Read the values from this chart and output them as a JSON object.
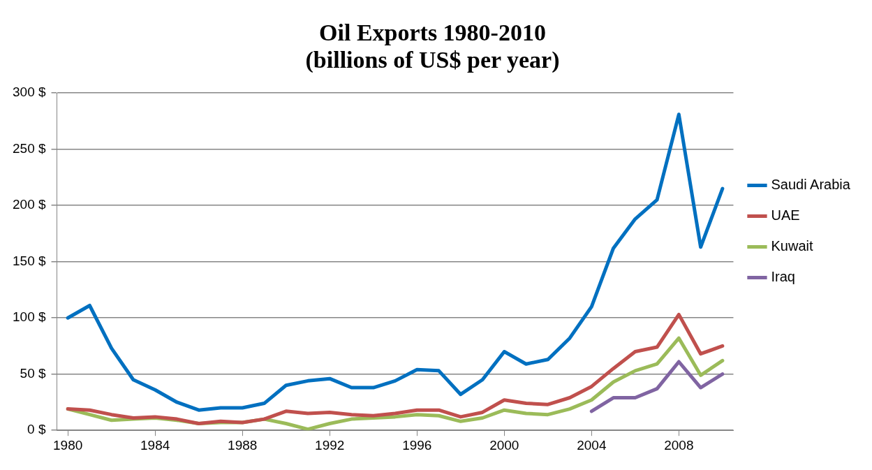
{
  "chart_data": {
    "type": "line",
    "title": "Oil Exports 1980-2010\n(billions of US$ per year)",
    "x": [
      1980,
      1981,
      1982,
      1983,
      1984,
      1985,
      1986,
      1987,
      1988,
      1989,
      1990,
      1991,
      1992,
      1993,
      1994,
      1995,
      1996,
      1997,
      1998,
      1999,
      2000,
      2001,
      2002,
      2003,
      2004,
      2005,
      2006,
      2007,
      2008,
      2009,
      2010
    ],
    "series": [
      {
        "name": "Saudi Arabia",
        "color": "#0070c0",
        "values": [
          100,
          111,
          73,
          45,
          36,
          25,
          18,
          20,
          20,
          24,
          40,
          44,
          46,
          38,
          38,
          44,
          54,
          53,
          32,
          45,
          70,
          59,
          63,
          82,
          110,
          162,
          188,
          205,
          281,
          163,
          215
        ]
      },
      {
        "name": "UAE",
        "color": "#c0504d",
        "values": [
          19,
          18,
          14,
          11,
          12,
          10,
          6,
          8,
          7,
          10,
          17,
          15,
          16,
          14,
          13,
          15,
          18,
          18,
          12,
          16,
          27,
          24,
          23,
          29,
          39,
          55,
          70,
          74,
          103,
          68,
          75
        ]
      },
      {
        "name": "Kuwait",
        "color": "#9bbb59",
        "values": [
          19,
          14,
          9,
          10,
          11,
          9,
          6,
          7,
          7,
          10,
          6,
          1,
          6,
          10,
          11,
          12,
          14,
          13,
          8,
          11,
          18,
          15,
          14,
          19,
          27,
          43,
          53,
          59,
          82,
          49,
          62
        ]
      },
      {
        "name": "Iraq",
        "color": "#8064a2",
        "values": [
          null,
          null,
          null,
          null,
          null,
          null,
          null,
          null,
          null,
          null,
          null,
          null,
          null,
          null,
          null,
          null,
          null,
          null,
          null,
          null,
          null,
          null,
          null,
          null,
          17,
          29,
          29,
          37,
          61,
          38,
          50
        ]
      }
    ],
    "xlim": [
      1979.5,
      2010.5
    ],
    "xticks": [
      1980,
      1984,
      1988,
      1992,
      1996,
      2000,
      2004,
      2008
    ],
    "ylim": [
      0,
      300
    ],
    "yticks": [
      {
        "value": 0,
        "label": "0 $"
      },
      {
        "value": 50,
        "label": "50 $"
      },
      {
        "value": 100,
        "label": "100 $"
      },
      {
        "value": 150,
        "label": "150 $"
      },
      {
        "value": 200,
        "label": "200 $"
      },
      {
        "value": 250,
        "label": "250 $"
      },
      {
        "value": 300,
        "label": "300 $"
      }
    ],
    "grid": "y",
    "legend": "right",
    "marker": "none",
    "line_style": "solid"
  }
}
